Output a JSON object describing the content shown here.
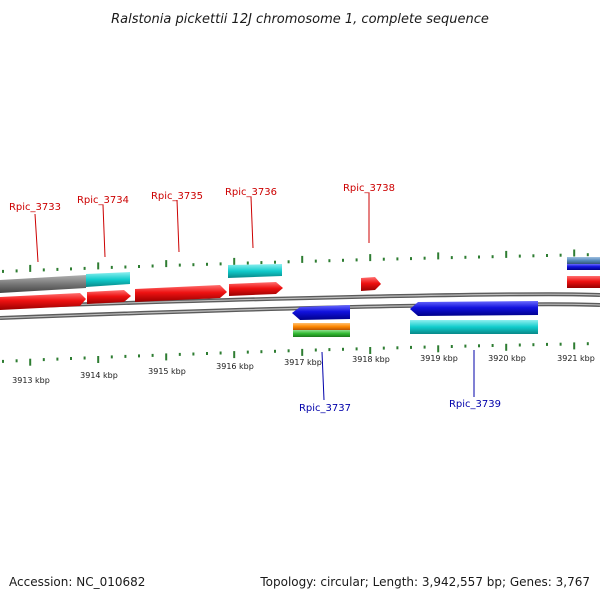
{
  "title": "Ralstonia pickettii 12J chromosome 1, complete sequence",
  "footer": {
    "accession": "Accession: NC_010682",
    "summary": "Topology: circular; Length: 3,942,557 bp; Genes: 3,767"
  },
  "colors": {
    "forward_label": "#cc0000",
    "reverse_label": "#0000aa",
    "tick": "#2e7d32",
    "backbone": "#7a7a7a",
    "red": "#ee1111",
    "blue": "#1111dd",
    "cyan": "#11cccc",
    "gray": "#777777",
    "orange": "#ff8800",
    "green": "#33bb33",
    "steel": "#5588bb"
  },
  "scale_labels": [
    "3913 kbp",
    "3914 kbp",
    "3915 kbp",
    "3916 kbp",
    "3917 kbp",
    "3918 kbp",
    "3919 kbp",
    "3920 kbp",
    "3921 kbp"
  ],
  "gene_labels_forward": [
    "Rpic_3733",
    "Rpic_3734",
    "Rpic_3735",
    "Rpic_3736",
    "Rpic_3738"
  ],
  "gene_labels_reverse": [
    "Rpic_3737",
    "Rpic_3739"
  ]
}
